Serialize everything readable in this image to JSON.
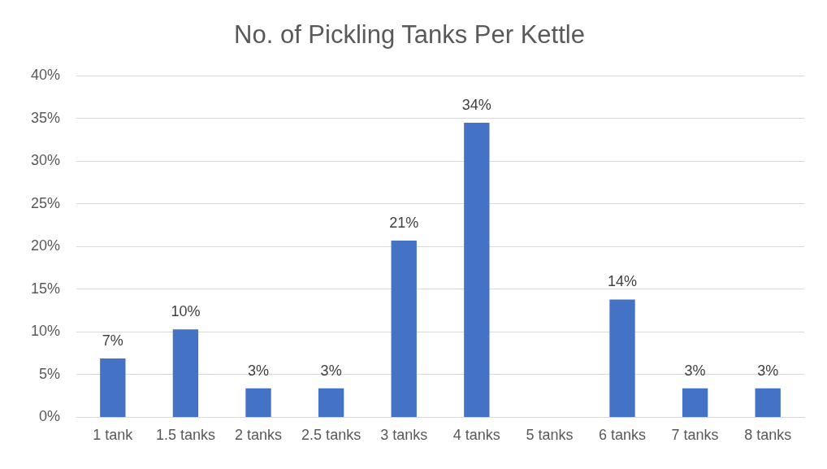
{
  "chart_data": {
    "type": "bar",
    "title": "No. of Pickling Tanks Per Kettle",
    "categories": [
      "1 tank",
      "1.5 tanks",
      "2 tanks",
      "2.5 tanks",
      "3 tanks",
      "4 tanks",
      "5 tanks",
      "6 tanks",
      "7 tanks",
      "8 tanks"
    ],
    "values": [
      6.9,
      10.3,
      3.4,
      3.4,
      20.7,
      34.5,
      0,
      13.8,
      3.4,
      3.4
    ],
    "value_labels": [
      "7%",
      "10%",
      "3%",
      "3%",
      "21%",
      "34%",
      null,
      "14%",
      "3%",
      "3%"
    ],
    "color": "#4472c4",
    "ylim": [
      0,
      40
    ],
    "yticks": [
      {
        "value": 0,
        "label": "0%"
      },
      {
        "value": 5,
        "label": "5%"
      },
      {
        "value": 10,
        "label": "10%"
      },
      {
        "value": 15,
        "label": "15%"
      },
      {
        "value": 20,
        "label": "20%"
      },
      {
        "value": 25,
        "label": "25%"
      },
      {
        "value": 30,
        "label": "30%"
      },
      {
        "value": 35,
        "label": "35%"
      },
      {
        "value": 40,
        "label": "40%"
      }
    ],
    "grid": "y",
    "legend": false
  }
}
